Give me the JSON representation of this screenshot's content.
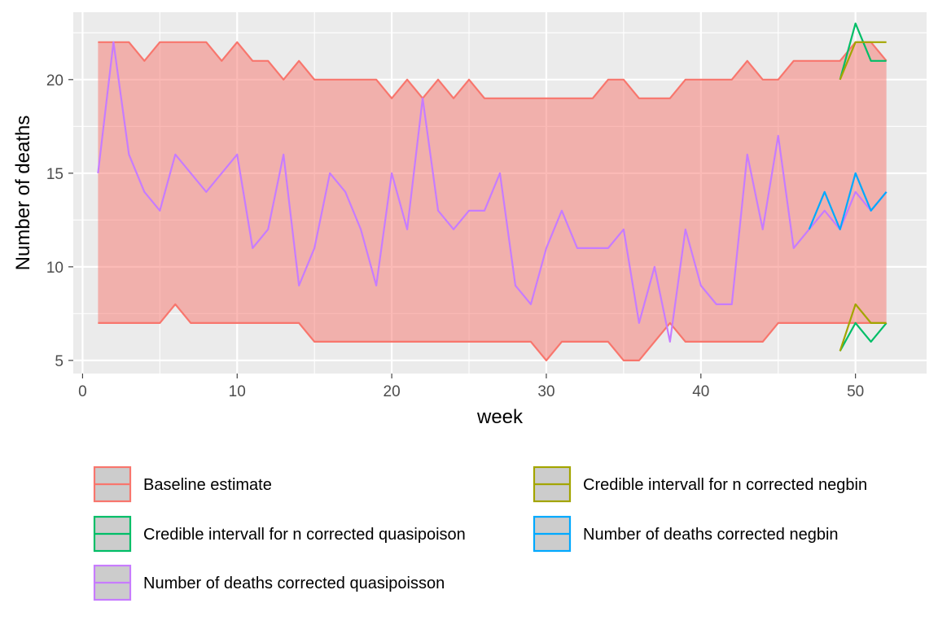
{
  "chart_data": {
    "type": "line",
    "title": "",
    "xlabel": "week",
    "ylabel": "Number of deaths",
    "xlim": [
      -0.6,
      54.6
    ],
    "ylim": [
      4.3,
      23.6
    ],
    "x_ticks": [
      0,
      10,
      20,
      30,
      40,
      50
    ],
    "y_ticks": [
      5,
      10,
      15,
      20
    ],
    "grid": true,
    "legend_position": "bottom",
    "colors": {
      "panel_bg": "#ebebeb",
      "grid": "#ffffff",
      "ribbon_fill": "#f8766d",
      "legend_key_bg": "#999999"
    },
    "baseline_band": {
      "name": "Baseline estimate",
      "color": "#f8766d",
      "x": [
        1,
        2,
        3,
        4,
        5,
        6,
        7,
        8,
        9,
        10,
        11,
        12,
        13,
        14,
        15,
        16,
        17,
        18,
        19,
        20,
        21,
        22,
        23,
        24,
        25,
        26,
        27,
        28,
        29,
        30,
        31,
        32,
        33,
        34,
        35,
        36,
        37,
        38,
        39,
        40,
        41,
        42,
        43,
        44,
        45,
        46,
        47,
        48,
        49,
        50,
        51,
        52
      ],
      "upper": [
        22,
        22,
        22,
        21,
        22,
        22,
        22,
        22,
        21,
        22,
        21,
        21,
        20,
        21,
        20,
        20,
        20,
        20,
        20,
        19,
        20,
        19,
        20,
        19,
        20,
        19,
        19,
        19,
        19,
        19,
        19,
        19,
        19,
        20,
        20,
        19,
        19,
        19,
        20,
        20,
        20,
        20,
        21,
        20,
        20,
        21,
        21,
        21,
        21,
        22,
        22,
        21
      ],
      "lower": [
        7,
        7,
        7,
        7,
        7,
        8,
        7,
        7,
        7,
        7,
        7,
        7,
        7,
        7,
        6,
        6,
        6,
        6,
        6,
        6,
        6,
        6,
        6,
        6,
        6,
        6,
        6,
        6,
        6,
        5,
        6,
        6,
        6,
        6,
        5,
        5,
        6,
        7,
        6,
        6,
        6,
        6,
        6,
        6,
        7,
        7,
        7,
        7,
        7,
        7,
        7,
        7
      ]
    },
    "series": [
      {
        "name": "Number of deaths corrected quasipoisson",
        "color": "#c77cff",
        "x": [
          1,
          2,
          3,
          4,
          5,
          6,
          7,
          8,
          9,
          10,
          11,
          12,
          13,
          14,
          15,
          16,
          17,
          18,
          19,
          20,
          21,
          22,
          23,
          24,
          25,
          26,
          27,
          28,
          29,
          30,
          31,
          32,
          33,
          34,
          35,
          36,
          37,
          38,
          39,
          40,
          41,
          42,
          43,
          44,
          45,
          46,
          47,
          48,
          49,
          50,
          51,
          52
        ],
        "values": [
          15,
          22,
          16,
          14,
          13,
          16,
          15,
          14,
          15,
          16,
          11,
          12,
          16,
          9,
          11,
          15,
          14,
          12,
          9,
          15,
          12,
          19,
          13,
          12,
          13,
          13,
          15,
          9,
          8,
          11,
          13,
          11,
          11,
          11,
          12,
          7,
          10,
          6,
          12,
          9,
          8,
          8,
          16,
          12,
          17,
          11,
          12,
          13,
          12,
          14,
          13,
          14
        ]
      },
      {
        "name": "Number of deaths corrected negbin",
        "color": "#00a9ff",
        "x": [
          47,
          48,
          49,
          50,
          51,
          52
        ],
        "values": [
          12,
          14,
          12,
          15,
          13,
          14
        ]
      },
      {
        "name": "Credible intervall for n corrected quasipoison",
        "color": "#00be67",
        "x": [
          49,
          50,
          51,
          52
        ],
        "upper": [
          20,
          23,
          21,
          21
        ],
        "lower": [
          5.5,
          7,
          6,
          7
        ]
      },
      {
        "name": "Credible intervall for n corrected negbin",
        "color": "#a3a500",
        "x": [
          49,
          50,
          51,
          52
        ],
        "upper": [
          20,
          22,
          22,
          22
        ],
        "lower": [
          5.5,
          8,
          7,
          7
        ]
      }
    ],
    "legend": [
      {
        "label": "Baseline estimate",
        "color": "#f8766d"
      },
      {
        "label": "Credible intervall for n corrected negbin",
        "color": "#a3a500"
      },
      {
        "label": "Credible intervall for n corrected quasipoison",
        "color": "#00be67"
      },
      {
        "label": "Number of deaths corrected negbin",
        "color": "#00a9ff"
      },
      {
        "label": "Number of deaths corrected quasipoisson",
        "color": "#c77cff"
      }
    ]
  }
}
